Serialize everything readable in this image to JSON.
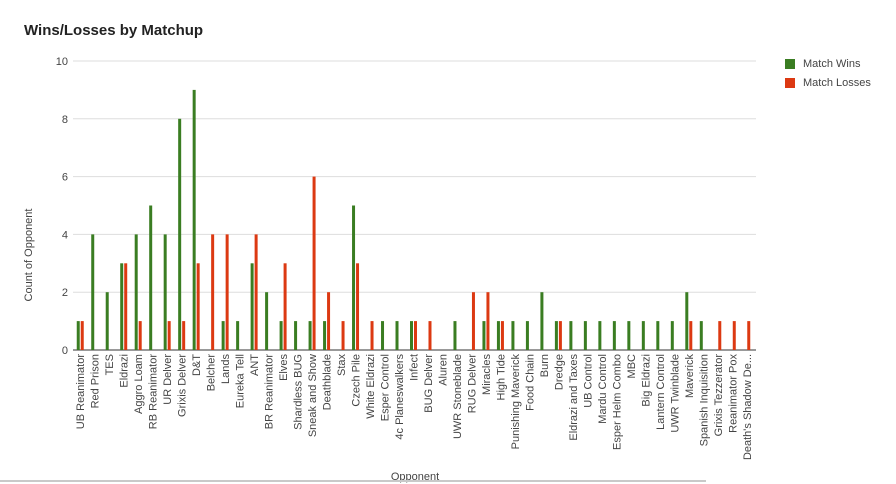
{
  "chart_data": {
    "type": "bar",
    "title": "Wins/Losses by Matchup",
    "xlabel": "Opponent",
    "ylabel": "Count of Opponent",
    "ylim": [
      0,
      10
    ],
    "yticks": [
      0,
      2,
      4,
      6,
      8,
      10
    ],
    "grid": true,
    "legend_position": "right",
    "categories": [
      "UB Reanimator",
      "Red Prison",
      "TES",
      "Eldrazi",
      "Aggro Loam",
      "RB Reanimator",
      "UR Delver",
      "Grixis Delver",
      "D&T",
      "Belcher",
      "Lands",
      "Eureka Tell",
      "ANT",
      "BR Reanimator",
      "Elves",
      "Shardless BUG",
      "Sneak and Show",
      "Deathblade",
      "Stax",
      "Czech Pile",
      "White Eldrazi",
      "Esper Control",
      "4c Planeswalkers",
      "Infect",
      "BUG Delver",
      "Aluren",
      "UWR Stoneblade",
      "RUG Delver",
      "Miracles",
      "High Tide",
      "Punishing Maverick",
      "Food Chain",
      "Burn",
      "Dredge",
      "Eldrazi and Taxes",
      "UB Control",
      "Mardu Control",
      "Esper Helm Combo",
      "MBC",
      "Big Eldrazi",
      "Lantern Control",
      "UWR Twinblade",
      "Maverick",
      "Spanish Inquisition",
      "Grixis Tezzerator",
      "Reanimator Pox",
      "Death's Shadow De..."
    ],
    "series": [
      {
        "name": "Match Wins",
        "color": "#3a7d22",
        "values": [
          1,
          4,
          2,
          3,
          4,
          5,
          4,
          8,
          9,
          0,
          1,
          1,
          3,
          2,
          1,
          1,
          1,
          1,
          0,
          5,
          0,
          1,
          1,
          1,
          0,
          0,
          1,
          0,
          1,
          1,
          1,
          1,
          2,
          1,
          1,
          1,
          1,
          1,
          1,
          1,
          1,
          1,
          2,
          1,
          0,
          0,
          0
        ]
      },
      {
        "name": "Match Losses",
        "color": "#dc3912",
        "values": [
          1,
          0,
          0,
          3,
          1,
          0,
          1,
          1,
          3,
          4,
          4,
          0,
          4,
          0,
          3,
          0,
          6,
          2,
          1,
          3,
          1,
          0,
          0,
          1,
          1,
          0,
          0,
          2,
          2,
          1,
          0,
          0,
          0,
          1,
          0,
          0,
          0,
          0,
          0,
          0,
          0,
          0,
          1,
          0,
          1,
          1,
          1
        ]
      }
    ]
  }
}
